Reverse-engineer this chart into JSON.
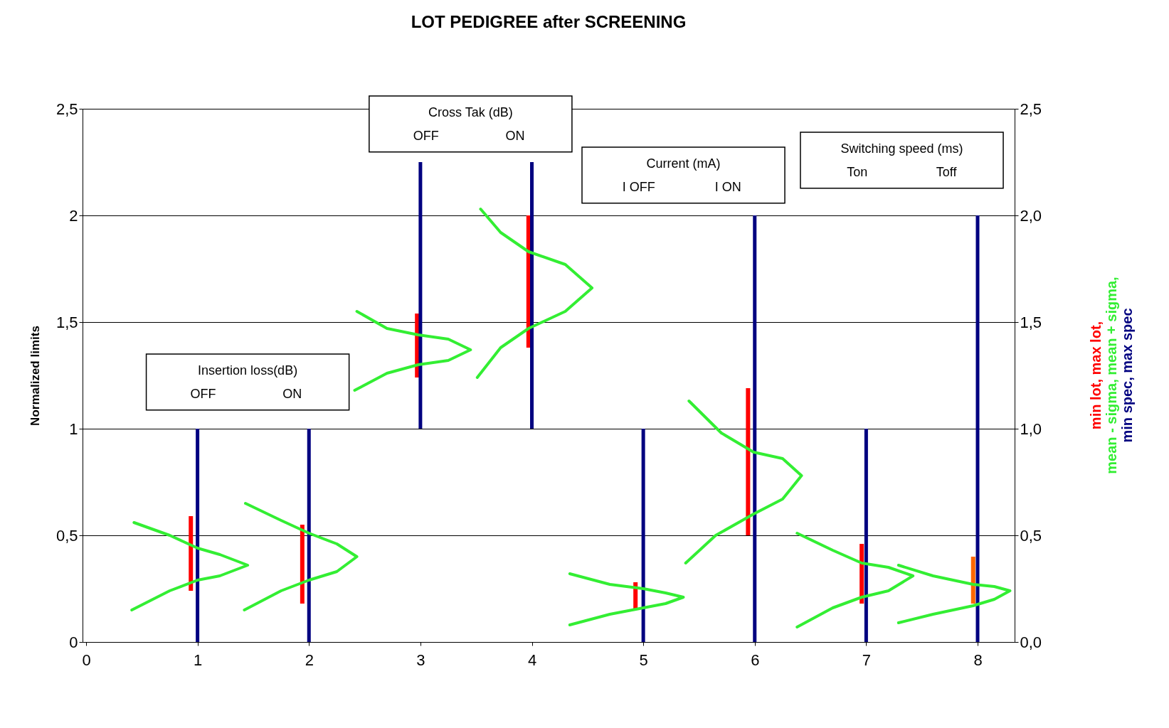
{
  "chart_data": {
    "type": "bar",
    "title": "LOT PEDIGREE after SCREENING",
    "ylabel": "Normalized limits",
    "xlim": [
      0,
      8.3
    ],
    "xticks": [
      0,
      1,
      2,
      3,
      4,
      5,
      6,
      7,
      8
    ],
    "ylim": [
      0,
      2.5
    ],
    "yticks": [
      0,
      {
        "value": 0.5,
        "label": "0,5"
      },
      1,
      {
        "value": 1.5,
        "label": "1,5"
      },
      2,
      {
        "value": 2.5,
        "label": "2,5"
      }
    ],
    "y2lim": [
      0,
      2.5
    ],
    "y2ticks": [
      {
        "value": 0,
        "label": "0,0"
      },
      {
        "value": 0.5,
        "label": "0,5"
      },
      {
        "value": 1,
        "label": "1,0"
      },
      {
        "value": 1.5,
        "label": "1,5"
      },
      {
        "value": 2,
        "label": "2,0"
      },
      {
        "value": 2.5,
        "label": "2,5"
      }
    ],
    "grid": "y",
    "legend": "right",
    "series": [
      {
        "name": "min lot, max lot,",
        "color": "#ff0000",
        "colors": [
          "#ff0000",
          "#ff0000",
          "#ff0000",
          "#ff0000",
          "#ff0000",
          "#ff0000",
          "#ff0000",
          "#ff6600"
        ],
        "x": [
          0.94,
          1.94,
          2.97,
          3.97,
          4.93,
          5.94,
          6.96,
          7.96
        ],
        "base": [
          0.24,
          0.18,
          1.24,
          1.38,
          0.15,
          0.5,
          0.18,
          0.18
        ],
        "values": [
          0.35,
          0.37,
          0.3,
          0.62,
          0.13,
          0.69,
          0.28,
          0.22
        ]
      },
      {
        "name": "mean - sigma, mean + sigma,",
        "type": "line",
        "color": "#33ee33",
        "x": [
          0.41,
          0.75,
          1.0,
          1.2,
          1.45,
          1.2,
          1.0,
          0.75,
          0.43
        ],
        "values": [
          0.15,
          0.24,
          0.29,
          0.31,
          0.36,
          0.41,
          0.44,
          0.5,
          0.56
        ]
      },
      {
        "name": "min spec, max spec",
        "color": "#000080",
        "x": [
          1,
          2,
          3,
          4,
          5,
          6,
          7,
          8
        ],
        "base": [
          0,
          0,
          1,
          1,
          0,
          0,
          0,
          0
        ],
        "values": [
          1,
          1,
          1.25,
          1.25,
          1,
          2,
          1,
          2
        ]
      },
      {
        "type": "line",
        "color": "#33ee33",
        "x": [
          1.42,
          1.75,
          2.0,
          2.25,
          2.43,
          2.25,
          2.0,
          1.75,
          1.43
        ],
        "values": [
          0.15,
          0.24,
          0.29,
          0.33,
          0.4,
          0.46,
          0.51,
          0.57,
          0.65
        ]
      },
      {
        "type": "line",
        "color": "#33ee33",
        "x": [
          2.41,
          2.7,
          2.98,
          3.25,
          3.45,
          3.25,
          2.98,
          2.7,
          2.43
        ],
        "values": [
          1.18,
          1.26,
          1.3,
          1.32,
          1.37,
          1.42,
          1.44,
          1.47,
          1.55
        ]
      },
      {
        "type": "line",
        "color": "#33ee33",
        "x": [
          3.51,
          3.72,
          3.97,
          4.3,
          4.54,
          4.3,
          3.97,
          3.72,
          3.54
        ],
        "values": [
          1.24,
          1.38,
          1.47,
          1.55,
          1.66,
          1.77,
          1.83,
          1.92,
          2.03
        ]
      },
      {
        "type": "line",
        "color": "#33ee33",
        "x": [
          4.34,
          4.7,
          5.0,
          5.2,
          5.36,
          5.2,
          5.0,
          4.7,
          4.34
        ],
        "values": [
          0.08,
          0.13,
          0.16,
          0.18,
          0.21,
          0.23,
          0.25,
          0.27,
          0.32
        ]
      },
      {
        "type": "line",
        "color": "#33ee33",
        "x": [
          5.38,
          5.65,
          5.99,
          6.25,
          6.42,
          6.25,
          5.99,
          5.7,
          5.41
        ],
        "values": [
          0.37,
          0.5,
          0.6,
          0.67,
          0.78,
          0.86,
          0.89,
          0.98,
          1.13
        ]
      },
      {
        "type": "line",
        "color": "#33ee33",
        "x": [
          6.38,
          6.7,
          6.96,
          7.2,
          7.42,
          7.2,
          6.96,
          6.7,
          6.38
        ],
        "values": [
          0.07,
          0.16,
          0.21,
          0.24,
          0.31,
          0.35,
          0.37,
          0.43,
          0.51
        ]
      },
      {
        "type": "line",
        "color": "#33ee33",
        "x": [
          7.29,
          7.6,
          7.96,
          8.15,
          8.29,
          8.15,
          7.96,
          7.6,
          7.29
        ],
        "values": [
          0.09,
          0.13,
          0.17,
          0.2,
          0.24,
          0.26,
          0.27,
          0.31,
          0.36
        ]
      }
    ],
    "annotations": [
      "Insertion loss(dB)",
      "OFF",
      "ON",
      "Cross  Tak (dB)",
      "OFF",
      "ON",
      "Current (mA)",
      "I OFF",
      "I  ON",
      "Switching speed (ms)",
      "Ton",
      "Toff"
    ]
  }
}
